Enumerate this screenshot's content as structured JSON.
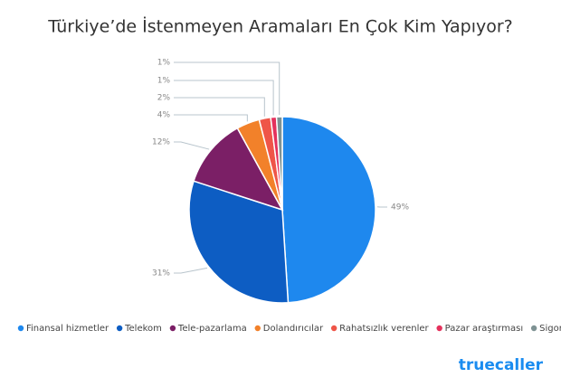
{
  "chart_data": {
    "type": "pie",
    "title": "Türkiye’de İstenmeyen Aramaları En Çok Kim Yapıyor?",
    "categories": [
      "Finansal hizmetler",
      "Telekom",
      "Tele-pazarlama",
      "Dolandırıcılar",
      "Rahatsızlık verenler",
      "Pazar araştırması",
      "Sigorta"
    ],
    "values": [
      49,
      31,
      12,
      4,
      2,
      1,
      1
    ],
    "value_labels": [
      "49%",
      "31%",
      "12%",
      "4%",
      "2%",
      "1%",
      "1%"
    ],
    "colors": [
      "#1e88ee",
      "#0d5dc3",
      "#7b1f66",
      "#f2812a",
      "#ef5548",
      "#e5315c",
      "#7e9293"
    ],
    "brand": "truecaller"
  }
}
